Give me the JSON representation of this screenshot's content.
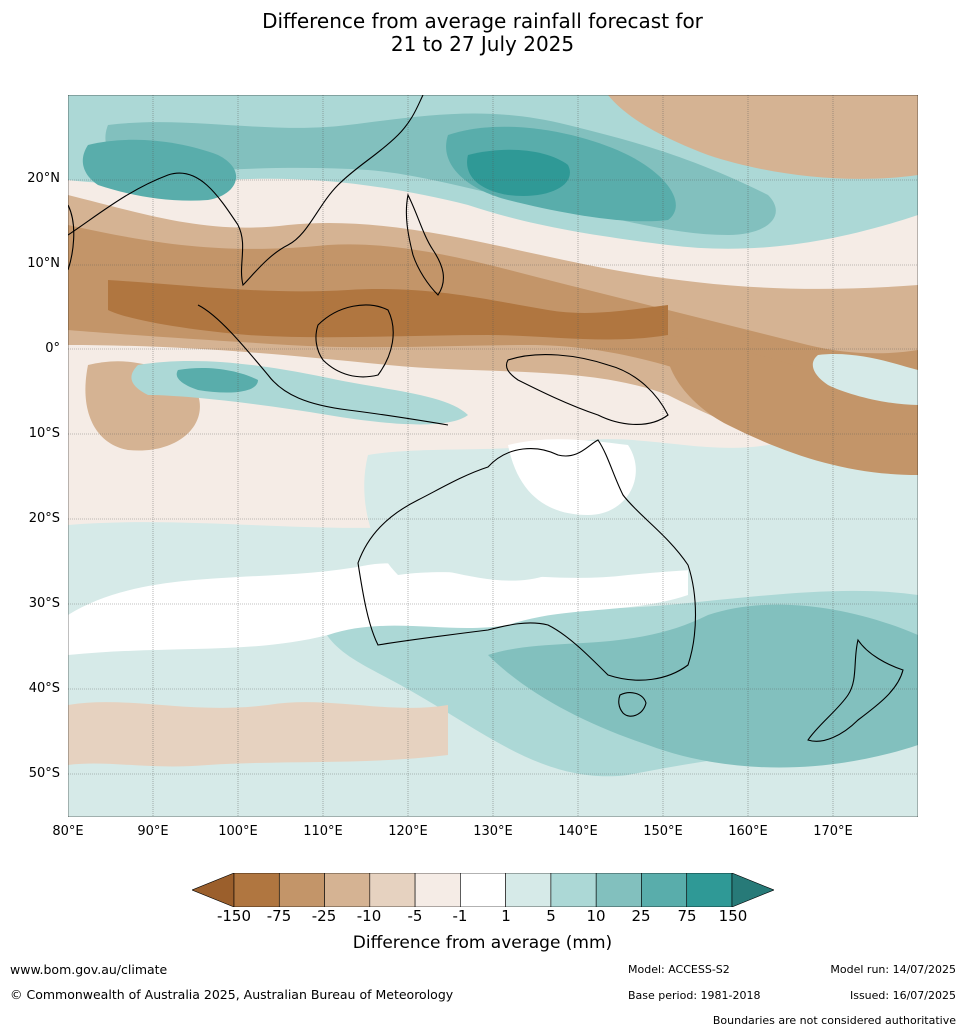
{
  "title": {
    "line1": "Difference from average rainfall forecast for",
    "line2": "21 to 27 July 2025"
  },
  "map": {
    "lat_labels": [
      "20°N",
      "10°N",
      "0°",
      "10°S",
      "20°S",
      "30°S",
      "40°S",
      "50°S"
    ],
    "lon_labels": [
      "80°E",
      "90°E",
      "100°E",
      "110°E",
      "120°E",
      "130°E",
      "140°E",
      "150°E",
      "160°E",
      "170°E"
    ]
  },
  "colorbar": {
    "ticks": [
      "-150",
      "-75",
      "-25",
      "-10",
      "-5",
      "-1",
      "1",
      "5",
      "10",
      "25",
      "75",
      "150"
    ],
    "colors": [
      "#9b5f2c",
      "#b07640",
      "#c39569",
      "#d5b393",
      "#e6d2c0",
      "#f5ece6",
      "#ffffff",
      "#d6eae8",
      "#acd8d6",
      "#82c0be",
      "#59adab",
      "#2f9996",
      "#277a78"
    ],
    "label": "Difference from average (mm)"
  },
  "footer": {
    "website": "www.bom.gov.au/climate",
    "copyright": "© Commonwealth of Australia 2025, Australian Bureau of Meteorology",
    "model": "Model: ACCESS-S2",
    "base_period": "Base period: 1981-2018",
    "model_run": "Model run: 14/07/2025",
    "issued": "Issued: 16/07/2025",
    "boundaries_note": "Boundaries are not considered authoritative"
  }
}
